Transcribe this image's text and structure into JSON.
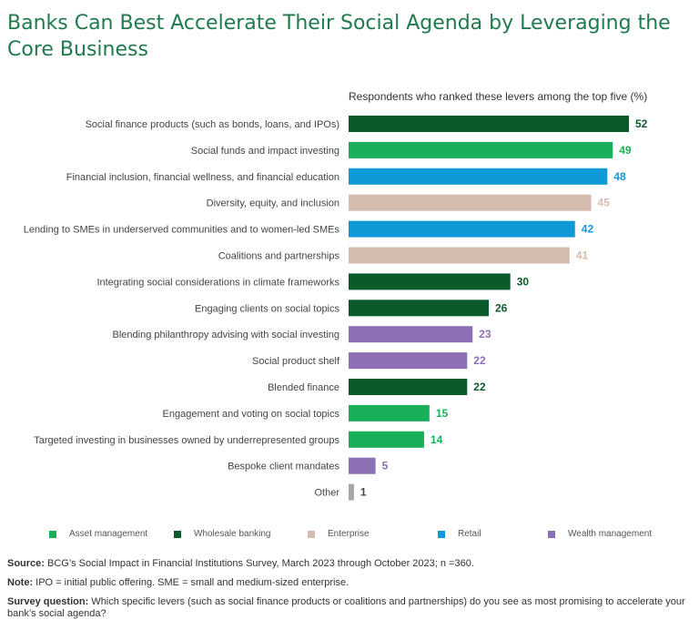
{
  "title": "Banks Can Best Accelerate Their Social Agenda by Leveraging the Core Business",
  "colors": {
    "asset_management": "#1ab05a",
    "wholesale_banking": "#0a5a2a",
    "enterprise": "#d4bcaf",
    "retail": "#0f99d6",
    "wealth_management": "#8c6fb5",
    "other": "#a6a6a6"
  },
  "chart_data": {
    "type": "bar",
    "orientation": "horizontal",
    "title": "Banks Can Best Accelerate Their Social Agenda by Leveraging the Core Business",
    "subtitle": "Respondents who ranked these levers among the top five (%)",
    "xlim": [
      0,
      52
    ],
    "grid": false,
    "categories": [
      "Social finance products (such as bonds, loans, and IPOs)",
      "Social funds and impact investing",
      "Financial inclusion, financial wellness, and financial education",
      "Diversity, equity, and inclusion",
      "Lending to SMEs in underserved communities and to women-led SMEs",
      "Coalitions and partnerships",
      "Integrating social considerations in climate frameworks",
      "Engaging clients on social topics",
      "Blending philanthropy advising with social investing",
      "Social product shelf",
      "Blended finance",
      "Engagement and voting on social topics",
      "Targeted investing in businesses owned by underrepresented groups",
      "Bespoke client mandates",
      "Other"
    ],
    "values": [
      52,
      49,
      48,
      45,
      42,
      41,
      30,
      26,
      23,
      22,
      22,
      15,
      14,
      5,
      1
    ],
    "groups": [
      "wholesale_banking",
      "asset_management",
      "retail",
      "enterprise",
      "retail",
      "enterprise",
      "wholesale_banking",
      "wholesale_banking",
      "wealth_management",
      "wealth_management",
      "wholesale_banking",
      "asset_management",
      "asset_management",
      "wealth_management",
      "other"
    ],
    "legend": [
      {
        "key": "asset_management",
        "label": "Asset management"
      },
      {
        "key": "wholesale_banking",
        "label": "Wholesale banking"
      },
      {
        "key": "enterprise",
        "label": "Enterprise"
      },
      {
        "key": "retail",
        "label": "Retail"
      },
      {
        "key": "wealth_management",
        "label": "Wealth management"
      }
    ]
  },
  "notes": {
    "source_label": "Source:",
    "source_text": " BCG’s Social Impact in Financial Institutions Survey, March 2023 through October 2023; n =360.",
    "note_label": "Note:",
    "note_text": " IPO = initial public offering. SME = small and medium-sized enterprise.",
    "question_label": "Survey question:",
    "question_text": " Which specific levers (such as social finance products or coalitions and partnerships) do you see as most promising to accelerate your bank’s social agenda?"
  }
}
